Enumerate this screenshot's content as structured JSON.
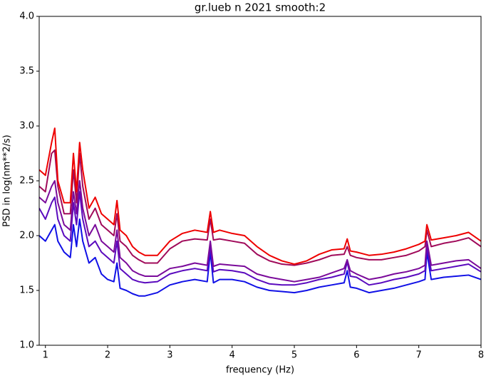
{
  "chart_data": {
    "type": "line",
    "title": "gr.lueb n 2021 smooth:2",
    "x_label": "frequency (Hz)",
    "y_label": "PSD in log(nm**2/s)",
    "xlim": [
      0.9,
      8
    ],
    "xticks": [
      1,
      2,
      3,
      4,
      5,
      6,
      7,
      8
    ],
    "ylim": [
      1,
      4
    ],
    "yticks": [
      {
        "value": 1,
        "label": "1.0"
      },
      1.5,
      {
        "value": 2,
        "label": "2.0"
      },
      2.5,
      {
        "value": 3,
        "label": "3.0"
      },
      3.5,
      {
        "value": 4,
        "label": "4.0"
      }
    ],
    "grid": false,
    "x": [
      0.9,
      1.0,
      1.1,
      1.15,
      1.2,
      1.3,
      1.4,
      1.45,
      1.5,
      1.55,
      1.6,
      1.7,
      1.8,
      1.9,
      2.0,
      2.1,
      2.15,
      2.2,
      2.3,
      2.4,
      2.5,
      2.6,
      2.8,
      3.0,
      3.2,
      3.4,
      3.6,
      3.65,
      3.7,
      3.8,
      4.0,
      4.2,
      4.4,
      4.6,
      4.8,
      5.0,
      5.2,
      5.4,
      5.6,
      5.8,
      5.85,
      5.9,
      6.0,
      6.2,
      6.4,
      6.6,
      6.8,
      7.0,
      7.1,
      7.13,
      7.2,
      7.4,
      7.6,
      7.8,
      8.0
    ],
    "series": [
      {
        "color": "#ee0000",
        "values": [
          2.6,
          2.55,
          2.85,
          2.98,
          2.5,
          2.3,
          2.3,
          2.75,
          2.4,
          2.85,
          2.6,
          2.25,
          2.35,
          2.2,
          2.15,
          2.1,
          2.32,
          2.05,
          2.0,
          1.9,
          1.85,
          1.82,
          1.82,
          1.95,
          2.02,
          2.05,
          2.03,
          2.22,
          2.03,
          2.05,
          2.02,
          2.0,
          1.9,
          1.82,
          1.77,
          1.74,
          1.77,
          1.83,
          1.87,
          1.88,
          1.97,
          1.86,
          1.85,
          1.82,
          1.83,
          1.85,
          1.88,
          1.92,
          1.95,
          2.1,
          1.96,
          1.98,
          2.0,
          2.03,
          1.95
        ]
      },
      {
        "color": "#a00a5a",
        "values": [
          2.45,
          2.4,
          2.75,
          2.78,
          2.45,
          2.2,
          2.2,
          2.6,
          2.3,
          2.75,
          2.45,
          2.15,
          2.25,
          2.1,
          2.05,
          2.0,
          2.2,
          1.95,
          1.9,
          1.82,
          1.78,
          1.75,
          1.75,
          1.88,
          1.95,
          1.97,
          1.96,
          2.15,
          1.96,
          1.97,
          1.95,
          1.93,
          1.83,
          1.77,
          1.74,
          1.73,
          1.75,
          1.78,
          1.82,
          1.83,
          1.9,
          1.82,
          1.8,
          1.78,
          1.78,
          1.8,
          1.82,
          1.86,
          1.9,
          2.05,
          1.9,
          1.93,
          1.95,
          1.98,
          1.9
        ]
      },
      {
        "color": "#7a0a9a",
        "values": [
          2.35,
          2.3,
          2.45,
          2.5,
          2.3,
          2.1,
          2.05,
          2.4,
          2.2,
          2.5,
          2.25,
          2.0,
          2.1,
          1.95,
          1.9,
          1.85,
          2.05,
          1.8,
          1.75,
          1.68,
          1.65,
          1.63,
          1.63,
          1.7,
          1.72,
          1.75,
          1.73,
          1.95,
          1.72,
          1.74,
          1.73,
          1.72,
          1.65,
          1.62,
          1.6,
          1.58,
          1.6,
          1.62,
          1.66,
          1.7,
          1.78,
          1.68,
          1.65,
          1.6,
          1.62,
          1.65,
          1.67,
          1.7,
          1.73,
          1.95,
          1.73,
          1.75,
          1.77,
          1.78,
          1.7
        ]
      },
      {
        "color": "#5a0abe",
        "values": [
          2.25,
          2.15,
          2.3,
          2.35,
          2.15,
          2.0,
          1.95,
          2.3,
          2.1,
          2.4,
          2.15,
          1.9,
          1.95,
          1.85,
          1.8,
          1.75,
          1.95,
          1.7,
          1.65,
          1.6,
          1.58,
          1.57,
          1.58,
          1.65,
          1.68,
          1.7,
          1.68,
          1.9,
          1.67,
          1.69,
          1.68,
          1.66,
          1.6,
          1.56,
          1.55,
          1.55,
          1.57,
          1.6,
          1.62,
          1.65,
          1.76,
          1.63,
          1.62,
          1.55,
          1.57,
          1.6,
          1.62,
          1.65,
          1.68,
          1.9,
          1.68,
          1.7,
          1.72,
          1.74,
          1.67
        ]
      },
      {
        "color": "#1010e6",
        "values": [
          2.0,
          1.95,
          2.05,
          2.1,
          1.95,
          1.85,
          1.8,
          2.1,
          1.9,
          2.15,
          1.95,
          1.75,
          1.8,
          1.65,
          1.6,
          1.58,
          1.75,
          1.52,
          1.5,
          1.47,
          1.45,
          1.45,
          1.48,
          1.55,
          1.58,
          1.6,
          1.58,
          1.85,
          1.57,
          1.6,
          1.6,
          1.58,
          1.53,
          1.5,
          1.49,
          1.48,
          1.5,
          1.53,
          1.55,
          1.57,
          1.68,
          1.53,
          1.52,
          1.48,
          1.5,
          1.52,
          1.55,
          1.58,
          1.6,
          1.85,
          1.6,
          1.62,
          1.63,
          1.64,
          1.6
        ]
      }
    ]
  }
}
